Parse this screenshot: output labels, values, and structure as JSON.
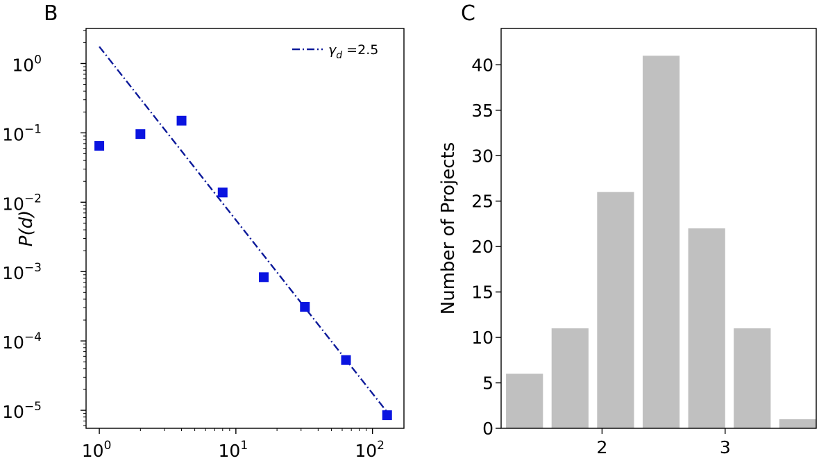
{
  "panels": {
    "b": {
      "letter": "B"
    },
    "c": {
      "letter": "C"
    }
  },
  "chart_data": [
    {
      "type": "scatter",
      "xscale": "log",
      "yscale": "log",
      "xlim": [
        0.8,
        170
      ],
      "ylim": [
        5.5e-06,
        3.2
      ],
      "xticks": [
        {
          "value": 1,
          "base": "10",
          "exp": "0"
        },
        {
          "value": 10,
          "base": "10",
          "exp": "1"
        },
        {
          "value": 100,
          "base": "10",
          "exp": "2"
        }
      ],
      "yticks": [
        {
          "value": 1,
          "base": "10",
          "exp": "0"
        },
        {
          "value": 0.1,
          "base": "10",
          "exp": "−1"
        },
        {
          "value": 0.01,
          "base": "10",
          "exp": "−2"
        },
        {
          "value": 0.001,
          "base": "10",
          "exp": "−3"
        },
        {
          "value": 0.0001,
          "base": "10",
          "exp": "−4"
        },
        {
          "value": 1e-05,
          "base": "10",
          "exp": "−5"
        }
      ],
      "ylabel": "P(d)",
      "xlabel": "",
      "grid": false,
      "legend_position": "top-right",
      "series": [
        {
          "kind": "points",
          "marker": "square",
          "color": "#0a14e0",
          "x": [
            1,
            2,
            4,
            8,
            16,
            32,
            64,
            128
          ],
          "y": [
            0.065,
            0.096,
            0.15,
            0.0138,
            0.00083,
            0.00031,
            5.3e-05,
            8.5e-06
          ]
        },
        {
          "kind": "fit-line",
          "name_symbol": "γ",
          "name_sub": "d",
          "name_value": " =2.5",
          "color": "#0d1a9a",
          "dash": "dash-dot",
          "exponent": -2.5,
          "coefficient": 1.75,
          "x_range": [
            1,
            128
          ]
        }
      ]
    },
    {
      "type": "bar",
      "xlim": [
        1.18,
        3.74
      ],
      "ylim": [
        0,
        44
      ],
      "xticks": [
        2,
        3
      ],
      "yticks": [
        0,
        5,
        10,
        15,
        20,
        25,
        30,
        35,
        40
      ],
      "ylabel": "Number of Projects",
      "xlabel": "",
      "grid": false,
      "bar_color": "#c0c0c0",
      "bar_width": 0.3,
      "bars": [
        {
          "x": 1.37,
          "value": 6
        },
        {
          "x": 1.74,
          "value": 11
        },
        {
          "x": 2.11,
          "value": 26
        },
        {
          "x": 2.48,
          "value": 41
        },
        {
          "x": 2.85,
          "value": 22
        },
        {
          "x": 3.22,
          "value": 11
        },
        {
          "x": 3.59,
          "value": 1
        }
      ]
    }
  ]
}
